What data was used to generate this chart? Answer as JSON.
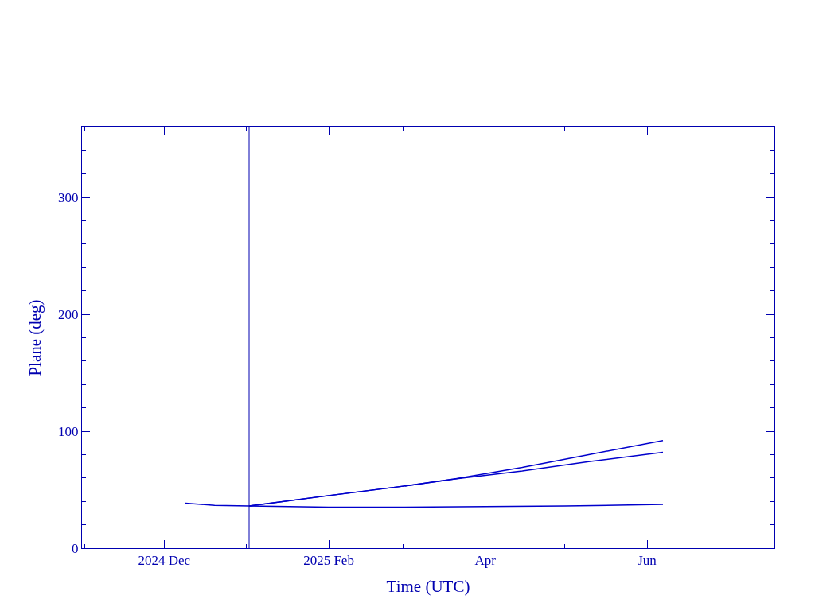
{
  "chart_data": {
    "type": "line",
    "xlabel": "Time (UTC)",
    "ylabel": "Plane (deg)",
    "xlim": [
      "2024-10-31",
      "2025-07-19"
    ],
    "xticks": [
      {
        "value": "2024-11-01",
        "label": null
      },
      {
        "value": "2024-12-01",
        "label": "2024 Dec"
      },
      {
        "value": "2025-01-01",
        "label": null
      },
      {
        "value": "2025-02-01",
        "label": "2025 Feb"
      },
      {
        "value": "2025-03-01",
        "label": null
      },
      {
        "value": "2025-04-01",
        "label": "Apr"
      },
      {
        "value": "2025-05-01",
        "label": null
      },
      {
        "value": "2025-06-01",
        "label": "Jun"
      },
      {
        "value": "2025-07-01",
        "label": null
      }
    ],
    "ylim": [
      0,
      360
    ],
    "yticks": [
      0,
      {
        "value": 20,
        "label": null
      },
      {
        "value": 40,
        "label": null
      },
      {
        "value": 60,
        "label": null
      },
      {
        "value": 80,
        "label": null
      },
      100,
      {
        "value": 120,
        "label": null
      },
      {
        "value": 140,
        "label": null
      },
      {
        "value": 160,
        "label": null
      },
      {
        "value": 180,
        "label": null
      },
      200,
      {
        "value": 220,
        "label": null
      },
      {
        "value": 240,
        "label": null
      },
      {
        "value": 260,
        "label": null
      },
      {
        "value": 280,
        "label": null
      },
      300,
      {
        "value": 320,
        "label": null
      },
      {
        "value": 340,
        "label": null
      }
    ],
    "marker": "none",
    "line_style": "solid",
    "ref_lines": [
      {
        "axis": "x",
        "value": "2025-01-02",
        "color": "#0000b0"
      }
    ],
    "series": [
      {
        "color": "#0000cc",
        "x": [
          "2024-12-09",
          "2024-12-20",
          "2025-01-02",
          "2025-02-01",
          "2025-03-01",
          "2025-04-01",
          "2025-05-01",
          "2025-06-07"
        ],
        "values": [
          38.5,
          36.5,
          36,
          35,
          35,
          35.5,
          36,
          37.5
        ]
      },
      {
        "color": "#0000cc",
        "x": [
          "2025-01-02",
          "2025-02-01",
          "2025-03-01",
          "2025-03-20",
          "2025-04-15",
          "2025-05-10",
          "2025-06-07"
        ],
        "values": [
          36,
          45,
          53,
          59,
          66,
          74,
          82
        ]
      },
      {
        "color": "#0000cc",
        "x": [
          "2025-01-02",
          "2025-02-01",
          "2025-03-01",
          "2025-03-20",
          "2025-04-15",
          "2025-05-10",
          "2025-06-07"
        ],
        "values": [
          36,
          45,
          53,
          59,
          69,
          80,
          92
        ]
      }
    ]
  }
}
